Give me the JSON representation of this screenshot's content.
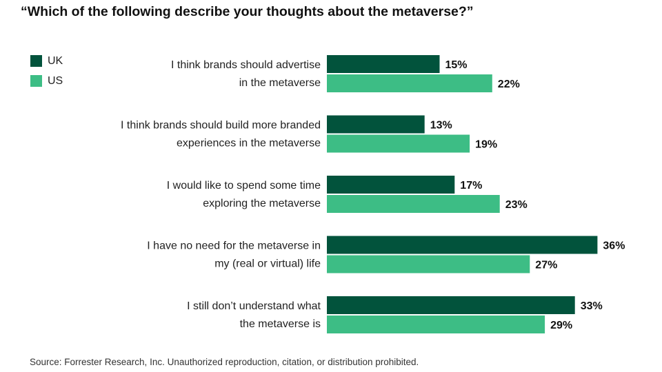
{
  "title": "“Which of the following describe your thoughts about the metaverse?”",
  "source": "Source: Forrester Research, Inc. Unauthorized reproduction, citation, or distribution prohibited.",
  "colors": {
    "uk": "#02533c",
    "us": "#3dbd85"
  },
  "chart_data": {
    "type": "bar",
    "orientation": "horizontal",
    "categories": [
      [
        "I think brands should advertise",
        "in the metaverse"
      ],
      [
        "I think brands should build more branded",
        "experiences in the metaverse"
      ],
      [
        "I would like to spend some time",
        "exploring the metaverse"
      ],
      [
        "I have no need for the metaverse in",
        "my (real or virtual) life"
      ],
      [
        "I still don’t understand what",
        "the metaverse is"
      ]
    ],
    "series": [
      {
        "name": "UK",
        "values": [
          15,
          13,
          17,
          36,
          33
        ],
        "labels": [
          "15%",
          "13%",
          "17%",
          "36%",
          "33%"
        ]
      },
      {
        "name": "US",
        "values": [
          22,
          19,
          23,
          27,
          29
        ],
        "labels": [
          "22%",
          "19%",
          "23%",
          "27%",
          "29%"
        ]
      }
    ],
    "unit": "%",
    "legend": "top-left",
    "grid": false
  }
}
